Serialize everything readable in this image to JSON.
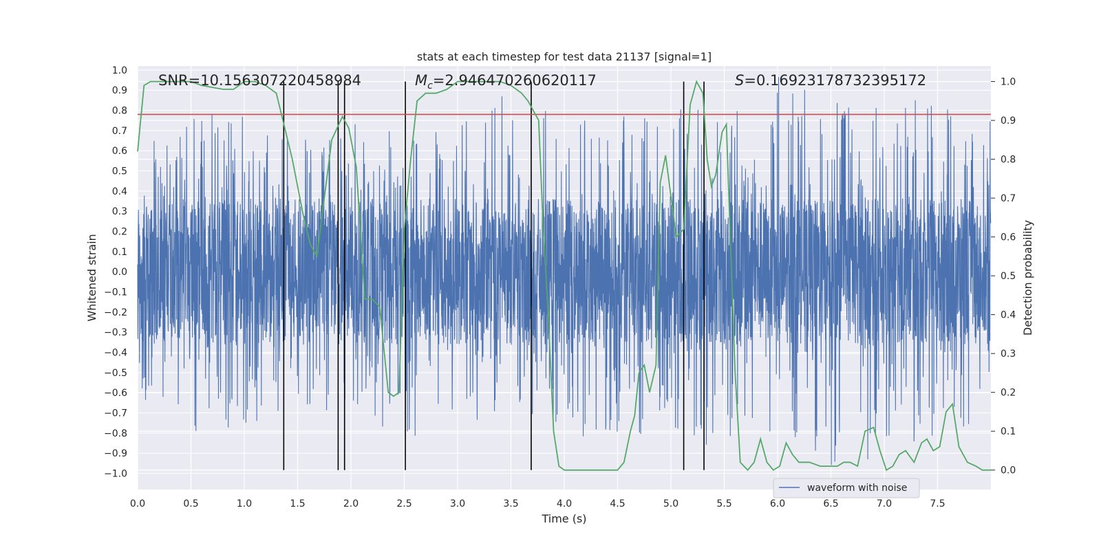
{
  "chart_data": {
    "type": "line",
    "title": "stats at each timestep for test data 21137 [signal=1]",
    "xlabel": "Time (s)",
    "ylabel_left": "Whitened strain",
    "ylabel_right": "Detection probability",
    "xlim": [
      0,
      8
    ],
    "ylim_left": [
      -1.08,
      1.02
    ],
    "ylim_right": [
      -0.05,
      1.04
    ],
    "x_ticks": [
      "0.0",
      "0.5",
      "1.0",
      "1.5",
      "2.0",
      "2.5",
      "3.0",
      "3.5",
      "4.0",
      "4.5",
      "5.0",
      "5.5",
      "6.0",
      "6.5",
      "7.0",
      "7.5"
    ],
    "y_ticks_left": [
      "1.0",
      "0.9",
      "0.8",
      "0.7",
      "0.6",
      "0.5",
      "0.4",
      "0.3",
      "0.2",
      "0.1",
      "0.0",
      "−0.1",
      "−0.2",
      "−0.3",
      "−0.4",
      "−0.5",
      "−0.6",
      "−0.7",
      "−0.8",
      "−0.9",
      "−1.0"
    ],
    "y_ticks_right": [
      "1.0",
      "0.9",
      "0.8",
      "0.7",
      "0.6",
      "0.5",
      "0.4",
      "0.3",
      "0.2",
      "0.1",
      "0.0"
    ],
    "annotations": {
      "snr": "SNR=10.156307220458984",
      "mc_symbol": "M",
      "mc_sub": "c",
      "mc_value": "=2.946470260620117",
      "s_symbol": "S",
      "s_value": "=0.16923178732395172"
    },
    "threshold_line_y": 0.78,
    "vertical_lines_x": [
      1.37,
      1.88,
      1.94,
      2.51,
      3.69,
      5.12,
      5.31
    ],
    "legend": [
      {
        "label": "waveform with noise",
        "color": "#4c72b0"
      }
    ],
    "legend_position": "lower right",
    "grid": true,
    "series": [
      {
        "name": "waveform with noise",
        "axis": "left",
        "color": "#4c72b0",
        "sample_rate_hz": 512,
        "core_amplitude": 0.36,
        "envelope_x": [
          0.0,
          0.5,
          1.0,
          1.5,
          2.0,
          2.5,
          3.0,
          3.5,
          4.0,
          4.5,
          5.0,
          5.3,
          5.5,
          6.0,
          6.5,
          7.0,
          7.5,
          8.0
        ],
        "envelope_top": [
          0.62,
          0.79,
          0.85,
          0.72,
          0.78,
          0.7,
          0.74,
          0.9,
          0.79,
          0.78,
          0.78,
          0.88,
          0.76,
          0.97,
          0.85,
          0.84,
          0.86,
          0.82
        ],
        "envelope_bottom": [
          -0.68,
          -0.81,
          -0.81,
          -0.7,
          -0.68,
          -0.9,
          -0.75,
          -0.73,
          -0.79,
          -0.87,
          -0.74,
          -1.0,
          -0.92,
          -0.78,
          -0.97,
          -0.93,
          -0.83,
          -0.79
        ]
      },
      {
        "name": "detection probability",
        "axis": "right",
        "color": "#55a868",
        "x": [
          0.0,
          0.06,
          0.12,
          0.3,
          0.5,
          0.6,
          0.8,
          0.9,
          1.0,
          1.1,
          1.2,
          1.3,
          1.38,
          1.45,
          1.55,
          1.62,
          1.68,
          1.75,
          1.82,
          1.92,
          1.98,
          2.05,
          2.13,
          2.2,
          2.27,
          2.35,
          2.4,
          2.45,
          2.5,
          2.56,
          2.62,
          2.7,
          2.8,
          2.9,
          3.0,
          3.1,
          3.2,
          3.4,
          3.5,
          3.6,
          3.66,
          3.72,
          3.76,
          3.8,
          3.85,
          3.9,
          3.95,
          4.0,
          4.2,
          4.4,
          4.5,
          4.56,
          4.62,
          4.66,
          4.7,
          4.75,
          4.8,
          4.86,
          4.9,
          4.95,
          5.05,
          5.12,
          5.18,
          5.24,
          5.3,
          5.34,
          5.38,
          5.42,
          5.48,
          5.52,
          5.6,
          5.65,
          5.72,
          5.78,
          5.84,
          5.9,
          5.96,
          6.02,
          6.08,
          6.14,
          6.2,
          6.3,
          6.4,
          6.5,
          6.56,
          6.62,
          6.68,
          6.75,
          6.82,
          6.9,
          6.96,
          7.02,
          7.08,
          7.14,
          7.2,
          7.28,
          7.35,
          7.4,
          7.46,
          7.52,
          7.58,
          7.64,
          7.7,
          7.78,
          7.86,
          7.92,
          8.0
        ],
        "y": [
          0.82,
          0.99,
          1.0,
          1.0,
          1.0,
          0.99,
          0.98,
          0.98,
          1.0,
          1.0,
          0.99,
          0.97,
          0.88,
          0.8,
          0.66,
          0.58,
          0.55,
          0.7,
          0.85,
          0.91,
          0.88,
          0.78,
          0.44,
          0.44,
          0.42,
          0.2,
          0.19,
          0.2,
          0.62,
          0.8,
          0.95,
          0.97,
          0.97,
          0.98,
          1.0,
          1.0,
          1.0,
          1.0,
          0.99,
          0.97,
          0.95,
          0.92,
          0.9,
          0.64,
          0.4,
          0.1,
          0.01,
          0.0,
          0.0,
          0.0,
          0.0,
          0.02,
          0.1,
          0.14,
          0.25,
          0.27,
          0.2,
          0.27,
          0.74,
          0.81,
          0.6,
          0.62,
          0.94,
          1.0,
          0.97,
          0.8,
          0.73,
          0.76,
          0.87,
          0.89,
          0.26,
          0.02,
          0.0,
          0.02,
          0.08,
          0.02,
          0.0,
          0.01,
          0.07,
          0.04,
          0.02,
          0.02,
          0.01,
          0.01,
          0.01,
          0.02,
          0.02,
          0.01,
          0.1,
          0.11,
          0.05,
          0.0,
          0.01,
          0.04,
          0.05,
          0.02,
          0.07,
          0.08,
          0.05,
          0.06,
          0.15,
          0.17,
          0.06,
          0.02,
          0.01,
          0.0,
          0.0
        ]
      }
    ]
  }
}
